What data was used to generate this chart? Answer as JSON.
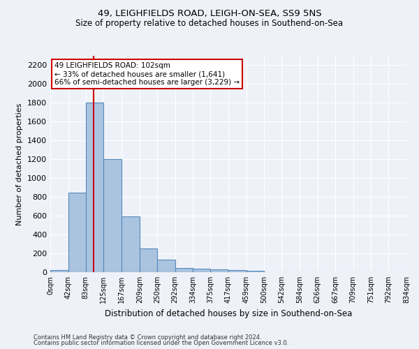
{
  "title1": "49, LEIGHFIELDS ROAD, LEIGH-ON-SEA, SS9 5NS",
  "title2": "Size of property relative to detached houses in Southend-on-Sea",
  "xlabel": "Distribution of detached houses by size in Southend-on-Sea",
  "ylabel": "Number of detached properties",
  "bar_edges": [
    0,
    42,
    83,
    125,
    167,
    209,
    250,
    292,
    334,
    375,
    417,
    459,
    500,
    542,
    584,
    626,
    667,
    709,
    751,
    792,
    834
  ],
  "bar_heights": [
    25,
    845,
    1800,
    1200,
    590,
    255,
    130,
    45,
    40,
    32,
    20,
    12,
    0,
    0,
    0,
    0,
    0,
    0,
    0,
    0
  ],
  "bar_color": "#aac4e0",
  "bar_edge_color": "#5588bb",
  "red_line_x": 102,
  "annotation_text": "49 LEIGHFIELDS ROAD: 102sqm\n← 33% of detached houses are smaller (1,641)\n66% of semi-detached houses are larger (3,229) →",
  "annotation_box_color": "#ffffff",
  "annotation_box_edge": "#cc0000",
  "ylim": [
    0,
    2300
  ],
  "yticks": [
    0,
    200,
    400,
    600,
    800,
    1000,
    1200,
    1400,
    1600,
    1800,
    2000,
    2200
  ],
  "tick_labels": [
    "0sqm",
    "42sqm",
    "83sqm",
    "125sqm",
    "167sqm",
    "209sqm",
    "250sqm",
    "292sqm",
    "334sqm",
    "375sqm",
    "417sqm",
    "459sqm",
    "500sqm",
    "542sqm",
    "584sqm",
    "626sqm",
    "667sqm",
    "709sqm",
    "751sqm",
    "792sqm",
    "834sqm"
  ],
  "footer1": "Contains HM Land Registry data © Crown copyright and database right 2024.",
  "footer2": "Contains public sector information licensed under the Open Government Licence v3.0.",
  "background_color": "#eef2f8",
  "grid_color": "#ffffff"
}
